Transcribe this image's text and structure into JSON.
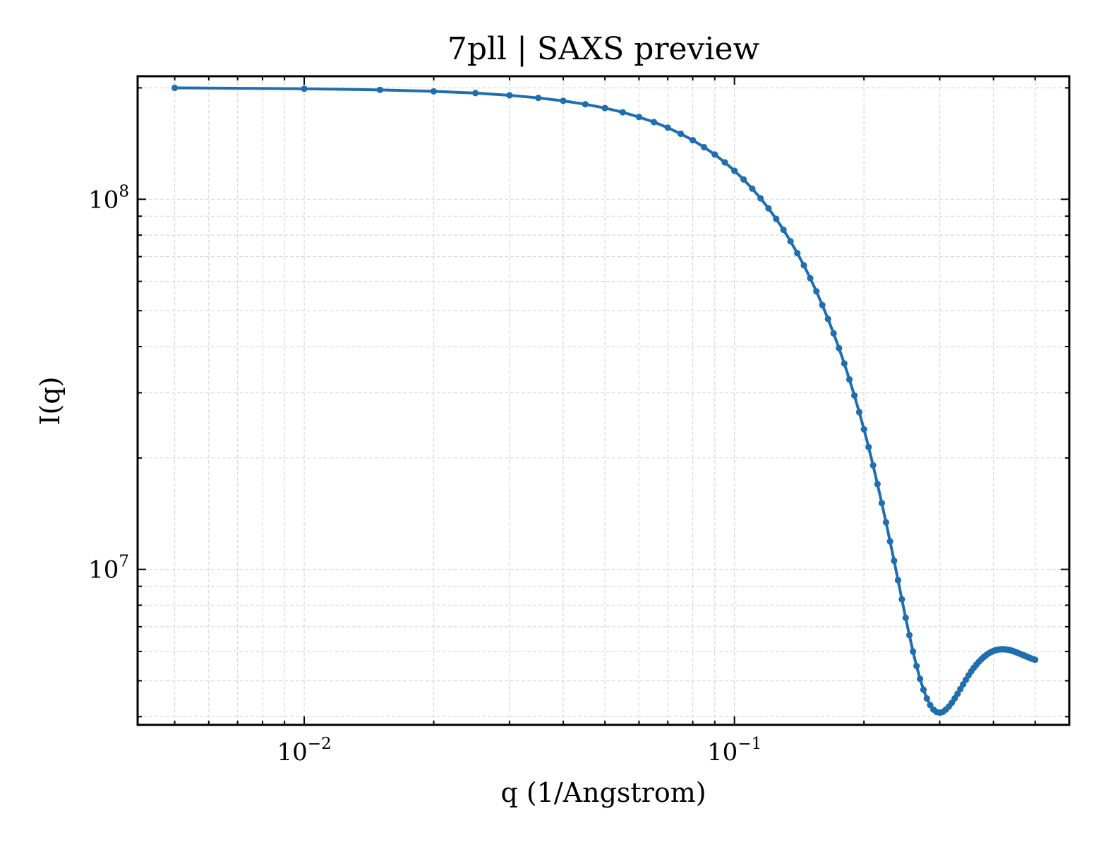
{
  "chart_data": {
    "type": "line",
    "title": "7pll | SAXS preview",
    "xlabel": "q (1/Angstrom)",
    "ylabel": "I(q)",
    "xscale": "log",
    "yscale": "log",
    "xlim": [
      0.0041,
      0.6
    ],
    "ylim": [
      3800000,
      215000000
    ],
    "grid": true,
    "grid_style": "dashed, both major and minor",
    "ticks_direction": "in",
    "x_tick_labels": [
      {
        "value": 0.01,
        "base": "10",
        "exp": "−2"
      },
      {
        "value": 0.1,
        "base": "10",
        "exp": "−1"
      }
    ],
    "y_tick_labels": [
      {
        "value": 10000000,
        "base": "10",
        "exp": "7"
      },
      {
        "value": 100000000,
        "base": "10",
        "exp": "8"
      }
    ],
    "color": "#1f6fb0",
    "marker": "circle",
    "series": [
      {
        "x": [
          0.005,
          0.01,
          0.015,
          0.02,
          0.025,
          0.03,
          0.035,
          0.04,
          0.045,
          0.05,
          0.055,
          0.06,
          0.065,
          0.07,
          0.075,
          0.08,
          0.085,
          0.09,
          0.095,
          0.1,
          0.105,
          0.11,
          0.115,
          0.12,
          0.125,
          0.13,
          0.135,
          0.14,
          0.145,
          0.15,
          0.155,
          0.16,
          0.165,
          0.17,
          0.175,
          0.18,
          0.185,
          0.19,
          0.195,
          0.2,
          0.205,
          0.21,
          0.215,
          0.22,
          0.225,
          0.23,
          0.235,
          0.24,
          0.245,
          0.25,
          0.255,
          0.26,
          0.265,
          0.27,
          0.275,
          0.28,
          0.285,
          0.29,
          0.295,
          0.3,
          0.305,
          0.31,
          0.315,
          0.32,
          0.325,
          0.33,
          0.335,
          0.34,
          0.345,
          0.35,
          0.355,
          0.36,
          0.365,
          0.37,
          0.375,
          0.38,
          0.385,
          0.39,
          0.395,
          0.4,
          0.405,
          0.41,
          0.415,
          0.42,
          0.425,
          0.43,
          0.435,
          0.44,
          0.445,
          0.45,
          0.455,
          0.46,
          0.465,
          0.47,
          0.475,
          0.48,
          0.485,
          0.49,
          0.495,
          0.5
        ],
        "y": [
          200000000,
          198900000,
          197500000,
          195700000,
          193600000,
          191000000,
          187900000,
          184500000,
          180600000,
          176400000,
          171800000,
          166800000,
          161600000,
          156100000,
          150300000,
          144400000,
          138300000,
          132100000,
          125800000,
          119400000,
          113100000,
          106800000,
          100600000,
          94500000,
          88500000,
          82700000,
          77000000,
          71500000,
          66300000,
          61200000,
          56400000,
          51800000,
          47500000,
          43400000,
          39600000,
          36000000,
          32600000,
          29500000,
          26600000,
          23900000,
          21400000,
          19100000,
          17000000,
          15100000,
          13400000,
          11900000,
          10550000,
          9350000,
          8300000,
          7400000,
          6640000,
          6000000,
          5480000,
          5060000,
          4730000,
          4480000,
          4300000,
          4180000,
          4120000,
          4100000,
          4120000,
          4180000,
          4260000,
          4360000,
          4480000,
          4610000,
          4750000,
          4890000,
          5030000,
          5170000,
          5300000,
          5420000,
          5530000,
          5630000,
          5720000,
          5800000,
          5870000,
          5930000,
          5980000,
          6020000,
          6050000,
          6070000,
          6080000,
          6085000,
          6080000,
          6070000,
          6055000,
          6035000,
          6010000,
          5980000,
          5950000,
          5920000,
          5890000,
          5860000,
          5830000,
          5800000,
          5770000,
          5740000,
          5720000,
          5700000
        ]
      }
    ]
  }
}
